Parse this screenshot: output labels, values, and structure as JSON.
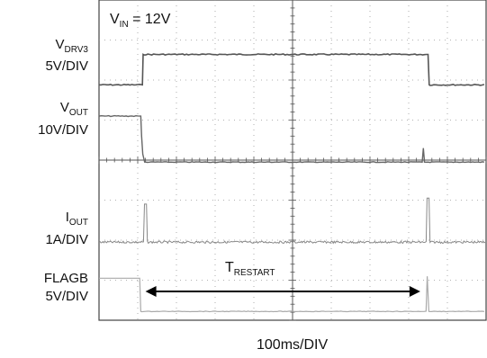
{
  "chart_data": {
    "type": "line",
    "title": "",
    "condition": {
      "main": "V",
      "sub": "IN",
      "rest": " = 12V"
    },
    "xlabel": "100ms/DIV",
    "grid": true,
    "x_divisions": 10,
    "y_divisions": 8,
    "series": [
      {
        "label_main": "V",
        "label_sub": "DRV3",
        "scale": "5V/DIV",
        "description": "low, steps high at ~1.1 div, falls back at ~8.5 div"
      },
      {
        "label_main": "V",
        "label_sub": "OUT",
        "scale": "10V/DIV",
        "description": "starts high, collapses at ~1.1 div, small spike at ~8.4 div"
      },
      {
        "label_main": "I",
        "label_sub": "OUT",
        "scale": "1A/DIV",
        "description": "noise floor with current spikes at ~1.2 div and ~8.5 div"
      },
      {
        "label_main": "FLAGB",
        "label_sub": "",
        "scale": "5V/DIV",
        "description": "low with pulses at ~1.1 div and ~8.5 div"
      }
    ],
    "annotation": {
      "main": "T",
      "sub": "RESTART",
      "from_div": 1.2,
      "to_div": 8.3
    }
  }
}
